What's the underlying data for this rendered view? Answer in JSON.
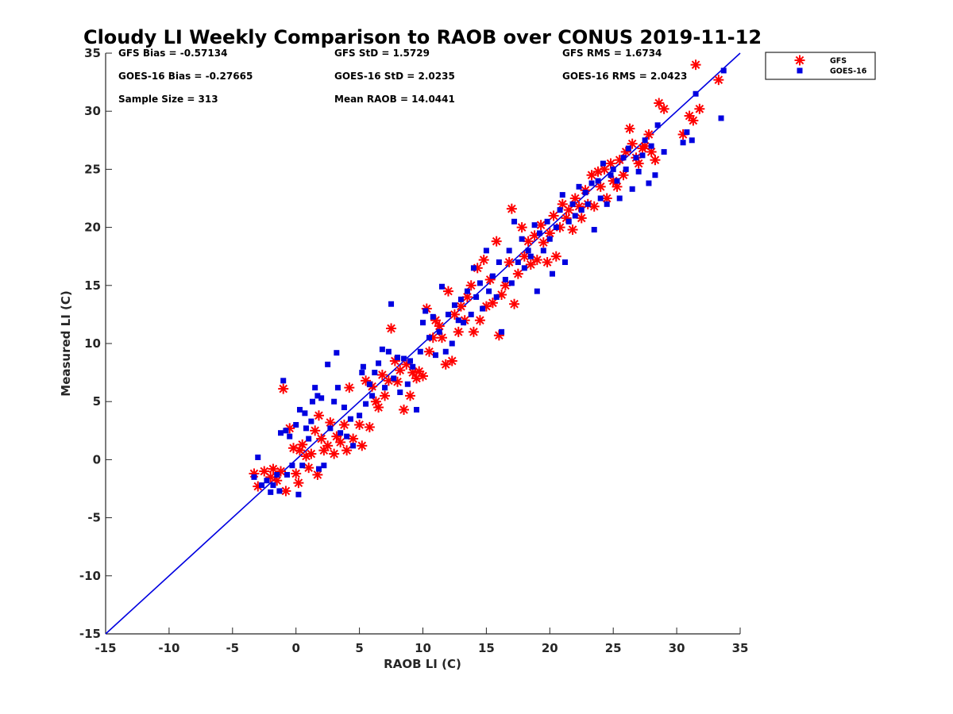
{
  "chart_data": {
    "type": "scatter",
    "title": "Cloudy LI Weekly Comparison to RAOB over CONUS 2019-11-12",
    "xlabel": "RAOB LI (C)",
    "ylabel": "Measured LI (C)",
    "xlim": [
      -15,
      35
    ],
    "ylim": [
      -15,
      35
    ],
    "xticks": [
      -15,
      -10,
      -5,
      0,
      5,
      10,
      15,
      20,
      25,
      30,
      35
    ],
    "yticks": [
      -15,
      -10,
      -5,
      0,
      5,
      10,
      15,
      20,
      25,
      30,
      35
    ],
    "grid": false,
    "legend_position": "outside-top-right",
    "reference_line": {
      "x": [
        -15,
        35
      ],
      "y": [
        -15,
        35
      ],
      "color": "#0000e0"
    },
    "stats": [
      [
        "GFS Bias = -0.57134",
        "GFS StD = 1.5729",
        "GFS RMS = 1.6734"
      ],
      [
        "GOES-16 Bias = -0.27665",
        "GOES-16 StD = 2.0235",
        "GOES-16 RMS = 2.0423"
      ],
      [
        "Sample Size = 313",
        "Mean RAOB = 14.0441",
        ""
      ]
    ],
    "series": [
      {
        "name": "GFS",
        "marker": "asterisk",
        "color": "#ff0000",
        "points": [
          [
            -3.3,
            -1.2
          ],
          [
            -3.0,
            -2.3
          ],
          [
            -2.5,
            -1.0
          ],
          [
            -2.0,
            -1.5
          ],
          [
            -1.8,
            -0.8
          ],
          [
            -1.5,
            -1.8
          ],
          [
            -1.2,
            -1.0
          ],
          [
            -1.0,
            6.1
          ],
          [
            -0.8,
            -2.7
          ],
          [
            -0.5,
            2.7
          ],
          [
            -0.2,
            1.0
          ],
          [
            0.0,
            -1.2
          ],
          [
            0.2,
            -2.0
          ],
          [
            0.3,
            0.8
          ],
          [
            0.5,
            1.3
          ],
          [
            0.8,
            0.3
          ],
          [
            1.0,
            -0.7
          ],
          [
            1.2,
            0.5
          ],
          [
            1.5,
            2.5
          ],
          [
            1.7,
            -1.3
          ],
          [
            1.8,
            3.8
          ],
          [
            2.0,
            1.8
          ],
          [
            2.2,
            0.8
          ],
          [
            2.5,
            1.2
          ],
          [
            2.7,
            3.2
          ],
          [
            3.0,
            0.5
          ],
          [
            3.2,
            2.0
          ],
          [
            3.5,
            1.5
          ],
          [
            3.8,
            3.0
          ],
          [
            4.0,
            0.8
          ],
          [
            4.2,
            6.2
          ],
          [
            4.5,
            1.8
          ],
          [
            5.0,
            3.0
          ],
          [
            5.2,
            1.2
          ],
          [
            5.5,
            6.8
          ],
          [
            5.8,
            2.8
          ],
          [
            6.0,
            6.3
          ],
          [
            6.3,
            5.0
          ],
          [
            6.5,
            4.5
          ],
          [
            6.8,
            7.3
          ],
          [
            7.0,
            5.5
          ],
          [
            7.3,
            6.8
          ],
          [
            7.5,
            11.3
          ],
          [
            7.8,
            8.5
          ],
          [
            8.0,
            6.7
          ],
          [
            8.2,
            7.7
          ],
          [
            8.5,
            4.3
          ],
          [
            8.7,
            8.2
          ],
          [
            9.0,
            5.5
          ],
          [
            9.2,
            7.5
          ],
          [
            9.5,
            7.0
          ],
          [
            9.7,
            7.6
          ],
          [
            10.0,
            7.2
          ],
          [
            10.3,
            13.0
          ],
          [
            10.5,
            9.3
          ],
          [
            10.8,
            10.5
          ],
          [
            11.0,
            12.0
          ],
          [
            11.3,
            11.5
          ],
          [
            11.5,
            10.5
          ],
          [
            11.8,
            8.2
          ],
          [
            12.0,
            14.5
          ],
          [
            12.3,
            8.5
          ],
          [
            12.5,
            12.5
          ],
          [
            12.8,
            11.0
          ],
          [
            13.0,
            13.2
          ],
          [
            13.3,
            12.0
          ],
          [
            13.5,
            14.0
          ],
          [
            13.8,
            15.0
          ],
          [
            14.0,
            11.0
          ],
          [
            14.3,
            16.5
          ],
          [
            14.5,
            12.0
          ],
          [
            14.8,
            17.2
          ],
          [
            15.0,
            13.2
          ],
          [
            15.3,
            15.5
          ],
          [
            15.5,
            13.5
          ],
          [
            15.8,
            18.8
          ],
          [
            16.0,
            10.7
          ],
          [
            16.2,
            14.2
          ],
          [
            16.5,
            15.0
          ],
          [
            16.8,
            17.0
          ],
          [
            17.0,
            21.6
          ],
          [
            17.2,
            13.4
          ],
          [
            17.5,
            16.0
          ],
          [
            17.8,
            20.0
          ],
          [
            18.0,
            17.5
          ],
          [
            18.3,
            18.8
          ],
          [
            18.5,
            16.8
          ],
          [
            18.8,
            19.3
          ],
          [
            19.0,
            17.2
          ],
          [
            19.3,
            20.2
          ],
          [
            19.5,
            18.7
          ],
          [
            19.8,
            17.0
          ],
          [
            20.0,
            19.5
          ],
          [
            20.3,
            21.0
          ],
          [
            20.5,
            17.5
          ],
          [
            20.8,
            20.0
          ],
          [
            21.0,
            22.0
          ],
          [
            21.3,
            20.8
          ],
          [
            21.5,
            21.5
          ],
          [
            21.8,
            19.8
          ],
          [
            22.0,
            22.5
          ],
          [
            22.3,
            21.8
          ],
          [
            22.5,
            20.8
          ],
          [
            22.8,
            23.2
          ],
          [
            23.0,
            22.0
          ],
          [
            23.3,
            24.5
          ],
          [
            23.5,
            21.8
          ],
          [
            23.8,
            24.8
          ],
          [
            24.0,
            23.5
          ],
          [
            24.3,
            25.0
          ],
          [
            24.5,
            22.5
          ],
          [
            24.8,
            25.5
          ],
          [
            25.0,
            24.0
          ],
          [
            25.3,
            23.5
          ],
          [
            25.5,
            25.8
          ],
          [
            25.8,
            24.5
          ],
          [
            26.0,
            26.5
          ],
          [
            26.3,
            28.5
          ],
          [
            26.5,
            27.2
          ],
          [
            26.8,
            26.0
          ],
          [
            27.0,
            25.5
          ],
          [
            27.3,
            26.8
          ],
          [
            27.5,
            27.0
          ],
          [
            27.8,
            28.0
          ],
          [
            28.0,
            26.5
          ],
          [
            28.3,
            25.8
          ],
          [
            28.6,
            30.7
          ],
          [
            29.0,
            30.2
          ],
          [
            30.5,
            28.0
          ],
          [
            31.0,
            29.6
          ],
          [
            31.3,
            29.2
          ],
          [
            31.5,
            34.0
          ],
          [
            31.8,
            30.2
          ],
          [
            33.3,
            32.7
          ]
        ]
      },
      {
        "name": "GOES-16",
        "marker": "square",
        "color": "#0000e0",
        "points": [
          [
            -3.3,
            -1.5
          ],
          [
            -3.0,
            0.2
          ],
          [
            -2.7,
            -2.2
          ],
          [
            -2.3,
            -1.8
          ],
          [
            -2.0,
            -2.8
          ],
          [
            -1.8,
            -2.2
          ],
          [
            -1.5,
            -1.3
          ],
          [
            -1.3,
            -2.7
          ],
          [
            -1.2,
            2.3
          ],
          [
            -1.0,
            6.8
          ],
          [
            -0.8,
            2.5
          ],
          [
            -0.7,
            -1.3
          ],
          [
            -0.5,
            2.0
          ],
          [
            -0.3,
            -0.5
          ],
          [
            0.0,
            3.0
          ],
          [
            0.2,
            -3.0
          ],
          [
            0.3,
            4.3
          ],
          [
            0.5,
            -0.5
          ],
          [
            0.7,
            4.0
          ],
          [
            0.8,
            2.7
          ],
          [
            1.0,
            1.8
          ],
          [
            1.2,
            3.3
          ],
          [
            1.3,
            5.0
          ],
          [
            1.5,
            6.2
          ],
          [
            1.7,
            5.5
          ],
          [
            1.8,
            -0.8
          ],
          [
            2.0,
            5.3
          ],
          [
            2.2,
            -0.5
          ],
          [
            2.5,
            8.2
          ],
          [
            2.7,
            2.7
          ],
          [
            3.0,
            5.0
          ],
          [
            3.2,
            9.2
          ],
          [
            3.3,
            6.2
          ],
          [
            3.5,
            2.3
          ],
          [
            3.8,
            4.5
          ],
          [
            4.0,
            2.0
          ],
          [
            4.3,
            3.5
          ],
          [
            4.5,
            1.2
          ],
          [
            5.0,
            3.8
          ],
          [
            5.2,
            7.5
          ],
          [
            5.3,
            8.0
          ],
          [
            5.5,
            4.8
          ],
          [
            5.8,
            6.5
          ],
          [
            6.0,
            5.5
          ],
          [
            6.2,
            7.5
          ],
          [
            6.5,
            8.3
          ],
          [
            6.8,
            9.5
          ],
          [
            7.0,
            6.2
          ],
          [
            7.3,
            9.3
          ],
          [
            7.5,
            13.4
          ],
          [
            7.7,
            7.0
          ],
          [
            8.0,
            8.8
          ],
          [
            8.2,
            5.8
          ],
          [
            8.5,
            8.7
          ],
          [
            8.8,
            6.5
          ],
          [
            9.0,
            8.5
          ],
          [
            9.2,
            8.0
          ],
          [
            9.5,
            4.3
          ],
          [
            9.8,
            9.3
          ],
          [
            10.0,
            11.8
          ],
          [
            10.2,
            12.8
          ],
          [
            10.5,
            10.5
          ],
          [
            10.8,
            12.3
          ],
          [
            11.0,
            9.0
          ],
          [
            11.3,
            11.0
          ],
          [
            11.5,
            14.9
          ],
          [
            11.8,
            9.3
          ],
          [
            12.0,
            12.5
          ],
          [
            12.3,
            10.0
          ],
          [
            12.5,
            13.3
          ],
          [
            12.8,
            12.0
          ],
          [
            13.0,
            13.8
          ],
          [
            13.2,
            11.8
          ],
          [
            13.5,
            14.5
          ],
          [
            13.8,
            12.5
          ],
          [
            14.0,
            16.5
          ],
          [
            14.2,
            14.0
          ],
          [
            14.5,
            15.2
          ],
          [
            14.7,
            13.0
          ],
          [
            15.0,
            18.0
          ],
          [
            15.2,
            14.5
          ],
          [
            15.5,
            15.8
          ],
          [
            15.8,
            14.0
          ],
          [
            16.0,
            17.0
          ],
          [
            16.2,
            11.0
          ],
          [
            16.5,
            15.5
          ],
          [
            16.8,
            18.0
          ],
          [
            17.0,
            15.2
          ],
          [
            17.2,
            20.5
          ],
          [
            17.5,
            17.0
          ],
          [
            17.8,
            19.0
          ],
          [
            18.0,
            16.5
          ],
          [
            18.3,
            18.0
          ],
          [
            18.5,
            17.5
          ],
          [
            18.8,
            20.2
          ],
          [
            19.0,
            14.5
          ],
          [
            19.2,
            19.5
          ],
          [
            19.5,
            18.0
          ],
          [
            19.8,
            20.5
          ],
          [
            20.0,
            19.0
          ],
          [
            20.2,
            16.0
          ],
          [
            20.5,
            20.0
          ],
          [
            20.8,
            21.5
          ],
          [
            21.0,
            22.8
          ],
          [
            21.2,
            17.0
          ],
          [
            21.5,
            20.5
          ],
          [
            21.8,
            22.0
          ],
          [
            22.0,
            21.0
          ],
          [
            22.3,
            23.5
          ],
          [
            22.5,
            21.5
          ],
          [
            22.8,
            23.0
          ],
          [
            23.0,
            22.0
          ],
          [
            23.3,
            23.8
          ],
          [
            23.5,
            19.8
          ],
          [
            23.8,
            24.0
          ],
          [
            24.0,
            22.5
          ],
          [
            24.2,
            25.5
          ],
          [
            24.5,
            22.0
          ],
          [
            24.8,
            24.5
          ],
          [
            25.0,
            25.0
          ],
          [
            25.3,
            24.0
          ],
          [
            25.5,
            22.5
          ],
          [
            25.8,
            26.0
          ],
          [
            26.0,
            25.0
          ],
          [
            26.2,
            26.8
          ],
          [
            26.5,
            23.3
          ],
          [
            26.8,
            26.0
          ],
          [
            27.0,
            24.8
          ],
          [
            27.3,
            26.2
          ],
          [
            27.5,
            27.5
          ],
          [
            27.8,
            23.8
          ],
          [
            28.0,
            27.0
          ],
          [
            28.3,
            24.5
          ],
          [
            28.5,
            28.8
          ],
          [
            29.0,
            26.5
          ],
          [
            30.5,
            27.3
          ],
          [
            30.8,
            28.2
          ],
          [
            31.2,
            27.5
          ],
          [
            31.5,
            31.5
          ],
          [
            33.5,
            29.4
          ],
          [
            33.7,
            33.5
          ]
        ]
      }
    ]
  }
}
